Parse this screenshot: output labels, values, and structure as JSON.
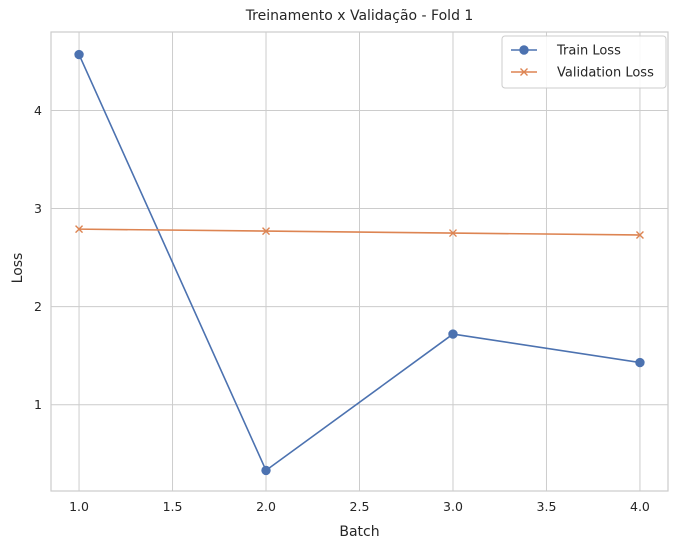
{
  "chart_data": {
    "type": "line",
    "title": "Treinamento x Validação - Fold 1",
    "xlabel": "Batch",
    "ylabel": "Loss",
    "x": [
      1.0,
      2.0,
      3.0,
      4.0
    ],
    "xlim": [
      0.85,
      4.15
    ],
    "ylim": [
      0.12,
      4.8
    ],
    "xticks": [
      1.0,
      1.5,
      2.0,
      2.5,
      3.0,
      3.5,
      4.0
    ],
    "xtick_labels": [
      "1.0",
      "1.5",
      "2.0",
      "2.5",
      "3.0",
      "3.5",
      "4.0"
    ],
    "yticks": [
      1,
      2,
      3,
      4
    ],
    "ytick_labels": [
      "1",
      "2",
      "3",
      "4"
    ],
    "grid": true,
    "legend_position": "top-right",
    "series": [
      {
        "name": "Train Loss",
        "values": [
          4.57,
          0.33,
          1.72,
          1.43
        ],
        "color": "#4c72b0",
        "marker": "circle"
      },
      {
        "name": "Validation Loss",
        "values": [
          2.79,
          2.77,
          2.75,
          2.73
        ],
        "color": "#dd8452",
        "marker": "x"
      }
    ]
  }
}
